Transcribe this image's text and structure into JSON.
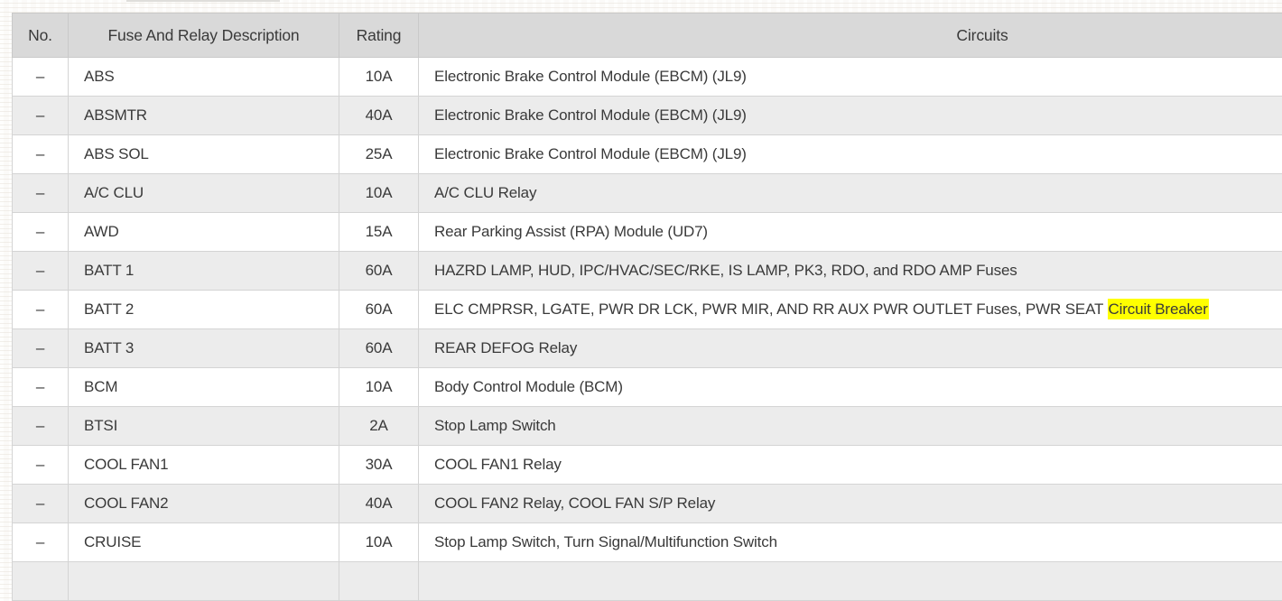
{
  "table": {
    "columns": [
      {
        "key": "no",
        "label": "No."
      },
      {
        "key": "desc",
        "label": "Fuse And Relay Description"
      },
      {
        "key": "rating",
        "label": "Rating"
      },
      {
        "key": "circuits",
        "label": "Circuits"
      }
    ],
    "rows": [
      {
        "no": "–",
        "desc": "ABS",
        "rating": "10A",
        "circuits": "Electronic Brake Control Module (EBCM) (JL9)"
      },
      {
        "no": "–",
        "desc": "ABSMTR",
        "rating": "40A",
        "circuits": "Electronic Brake Control Module (EBCM) (JL9)"
      },
      {
        "no": "–",
        "desc": "ABS SOL",
        "rating": "25A",
        "circuits": "Electronic Brake Control Module (EBCM) (JL9)"
      },
      {
        "no": "–",
        "desc": "A/C CLU",
        "rating": "10A",
        "circuits": "A/C CLU Relay"
      },
      {
        "no": "–",
        "desc": "AWD",
        "rating": "15A",
        "circuits": "Rear Parking Assist (RPA) Module (UD7)"
      },
      {
        "no": "–",
        "desc": "BATT 1",
        "rating": "60A",
        "circuits": "HAZRD LAMP, HUD, IPC/HVAC/SEC/RKE, IS LAMP, PK3, RDO, and RDO AMP Fuses"
      },
      {
        "no": "–",
        "desc": "BATT 2",
        "rating": "60A",
        "circuits": "ELC CMPRSR, LGATE, PWR DR LCK, PWR MIR, AND RR AUX PWR OUTLET Fuses, PWR SEAT ",
        "highlight": "Circuit Breaker"
      },
      {
        "no": "–",
        "desc": "BATT 3",
        "rating": "60A",
        "circuits": "REAR DEFOG Relay"
      },
      {
        "no": "–",
        "desc": "BCM",
        "rating": "10A",
        "circuits": "Body Control Module (BCM)"
      },
      {
        "no": "–",
        "desc": "BTSI",
        "rating": "2A",
        "circuits": "Stop Lamp Switch"
      },
      {
        "no": "–",
        "desc": "COOL FAN1",
        "rating": "30A",
        "circuits": "COOL FAN1 Relay"
      },
      {
        "no": "–",
        "desc": "COOL FAN2",
        "rating": "40A",
        "circuits": "COOL FAN2 Relay, COOL FAN S/P Relay"
      },
      {
        "no": "–",
        "desc": "CRUISE",
        "rating": "10A",
        "circuits": "Stop Lamp Switch, Turn Signal/Multifunction Switch"
      }
    ],
    "partial_next_row_visible": true,
    "colors": {
      "header_bg": "#d9d9d9",
      "header_border": "#c9c9c9",
      "row_bg": "#ffffff",
      "row_alt_bg": "#ececec",
      "border": "#d4d4d4",
      "text": "#3a3a3a",
      "highlight_bg": "#ffff00"
    }
  }
}
